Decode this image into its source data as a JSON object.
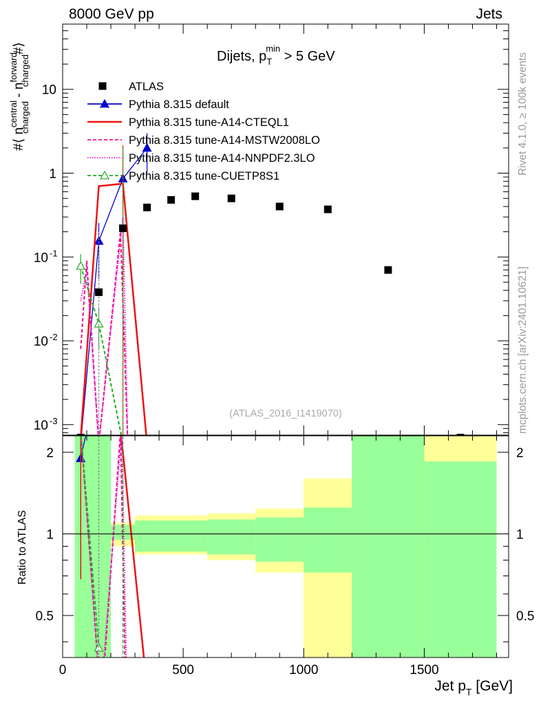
{
  "header": {
    "left": "8000 GeV pp",
    "right": "Jets"
  },
  "side_labels": {
    "rivet": "Rivet 4.1.0, ≥ 100k events",
    "mcplots": "mcplots.cern.ch [arXiv:2401.10621]"
  },
  "chart_data": {
    "type": "scatter",
    "title": "Dijets, p_T^min > 5 GeV",
    "title_parts": {
      "main": "Dijets, p",
      "sub": "T",
      "sup": "min",
      "tail": " > 5 GeV"
    },
    "analysis_id": "(ATLAS_2016_I1419070)",
    "ylabel": "#⟨ n_charged^central - n_charged^forward #⟩",
    "ylabel_parts": {
      "prefix": "#⟨ n",
      "sup1": "central",
      "sub1": "charged",
      "mid": " - n",
      "sup2": "forward",
      "sub2": "charged",
      "suffix": "#⟩"
    },
    "ratio_ylabel": "Ratio to ATLAS",
    "xlabel": "Jet p_T [GeV]",
    "xlabel_parts": {
      "main": "Jet p",
      "sub": "T",
      "tail": " [GeV]"
    },
    "xlim": [
      0,
      1850
    ],
    "ylim": [
      0.00075,
      60
    ],
    "ratio_ylim": [
      0.35,
      2.3
    ],
    "x_ticks": [
      "0",
      "500",
      "1000",
      "1500"
    ],
    "y_ticks": [
      "10^-3",
      "10^-2",
      "10^-1",
      "1",
      "10"
    ],
    "ratio_ticks": [
      "0.5",
      "1",
      "2"
    ],
    "legend_position": "top-left",
    "atlas": {
      "name": "ATLAS",
      "x": [
        75,
        150,
        250,
        350,
        450,
        550,
        700,
        900,
        1100,
        1350,
        1650
      ],
      "y": [
        0.0007,
        0.038,
        0.22,
        0.39,
        0.48,
        0.53,
        0.5,
        0.4,
        0.37,
        0.07,
        0.0007
      ]
    },
    "bands": [
      {
        "x0": 50,
        "x1": 100,
        "green": [
          0.2,
          10
        ],
        "yellow": [
          0.2,
          10
        ]
      },
      {
        "x0": 100,
        "x1": 200,
        "green": [
          0.2,
          10
        ],
        "yellow": [
          0.2,
          10
        ]
      },
      {
        "x0": 200,
        "x1": 300,
        "green": [
          0.95,
          1.08
        ],
        "yellow": [
          0.9,
          1.1
        ]
      },
      {
        "x0": 300,
        "x1": 400,
        "green": [
          0.86,
          1.12
        ],
        "yellow": [
          0.84,
          1.17
        ]
      },
      {
        "x0": 400,
        "x1": 600,
        "green": [
          0.86,
          1.12
        ],
        "yellow": [
          0.84,
          1.17
        ]
      },
      {
        "x0": 600,
        "x1": 800,
        "green": [
          0.84,
          1.13
        ],
        "yellow": [
          0.8,
          1.19
        ]
      },
      {
        "x0": 800,
        "x1": 1000,
        "green": [
          0.79,
          1.15
        ],
        "yellow": [
          0.72,
          1.24
        ]
      },
      {
        "x0": 1000,
        "x1": 1200,
        "green": [
          0.72,
          1.25
        ],
        "yellow": [
          0.35,
          1.6
        ]
      },
      {
        "x0": 1200,
        "x1": 1500,
        "green": [
          0.2,
          10
        ],
        "yellow": [
          0.2,
          10
        ]
      },
      {
        "x0": 1500,
        "x1": 1800,
        "green": [
          0.2,
          1.85
        ],
        "yellow": [
          0.2,
          10
        ]
      }
    ],
    "series": [
      {
        "name": "Pythia 8.315 default",
        "color": "#0000cc",
        "dash": "",
        "marker": "triangle",
        "x": [
          75,
          150,
          250,
          350
        ],
        "y": [
          0.0006,
          0.155,
          0.86,
          2.0
        ],
        "err": [
          0,
          0.1,
          0,
          1.0
        ],
        "ratio_x": [
          75,
          100
        ],
        "ratio_y": [
          1.9,
          2.4
        ]
      },
      {
        "name": "Pythia 8.315 tune-A14-CTEQL1",
        "color": "#ee1111",
        "dash": "",
        "marker": "none",
        "x": [
          75,
          150,
          250,
          350
        ],
        "y": [
          0.0007,
          0.7,
          0.75,
          0.0006
        ],
        "err": [
          0,
          0,
          1.4,
          0
        ],
        "ratio_x": [
          75,
          100,
          150,
          250,
          340
        ],
        "ratio_y": [
          2.5,
          5,
          10,
          2.0,
          0.33
        ],
        "ratio_err_x": 75,
        "ratio_err": [
          0.68,
          2.5
        ]
      },
      {
        "name": "Pythia 8.315 tune-A14-MSTW2008LO",
        "color": "#ee1188",
        "dash": "5,3",
        "marker": "none",
        "x": [
          75,
          100,
          150,
          240,
          270
        ],
        "y": [
          0.008,
          0.09,
          0.0006,
          0.2,
          0.0006
        ],
        "err": [
          0,
          0,
          0,
          0,
          0
        ],
        "ratio_x": [
          75,
          150,
          170,
          240,
          260
        ],
        "ratio_y": [
          2.4,
          0.3,
          0.3,
          2.4,
          0.3
        ]
      },
      {
        "name": "Pythia 8.315 tune-A14-NNPDF2.3LO",
        "color": "#ee11cc",
        "dash": "1.5,2",
        "marker": "none",
        "x": [
          75,
          100,
          150,
          250,
          270
        ],
        "y": [
          0.03,
          0.07,
          0.0006,
          0.3,
          0.0006
        ],
        "err": [
          0,
          0,
          0,
          0,
          0
        ],
        "ratio_x": [
          75,
          150,
          165,
          245,
          265
        ],
        "ratio_y": [
          2.4,
          0.3,
          0.3,
          2.4,
          0.3
        ]
      },
      {
        "name": "Pythia 8.315 tune-CUETP8S1",
        "color": "#22aa22",
        "dash": "5,3",
        "marker": "triangle-open",
        "x": [
          75,
          150,
          250
        ],
        "y": [
          0.078,
          0.016,
          0.0006
        ],
        "err": [
          0.03,
          0.008,
          0
        ],
        "ratio_x": [
          75,
          150
        ],
        "ratio_y": [
          2.4,
          0.38
        ]
      }
    ]
  }
}
